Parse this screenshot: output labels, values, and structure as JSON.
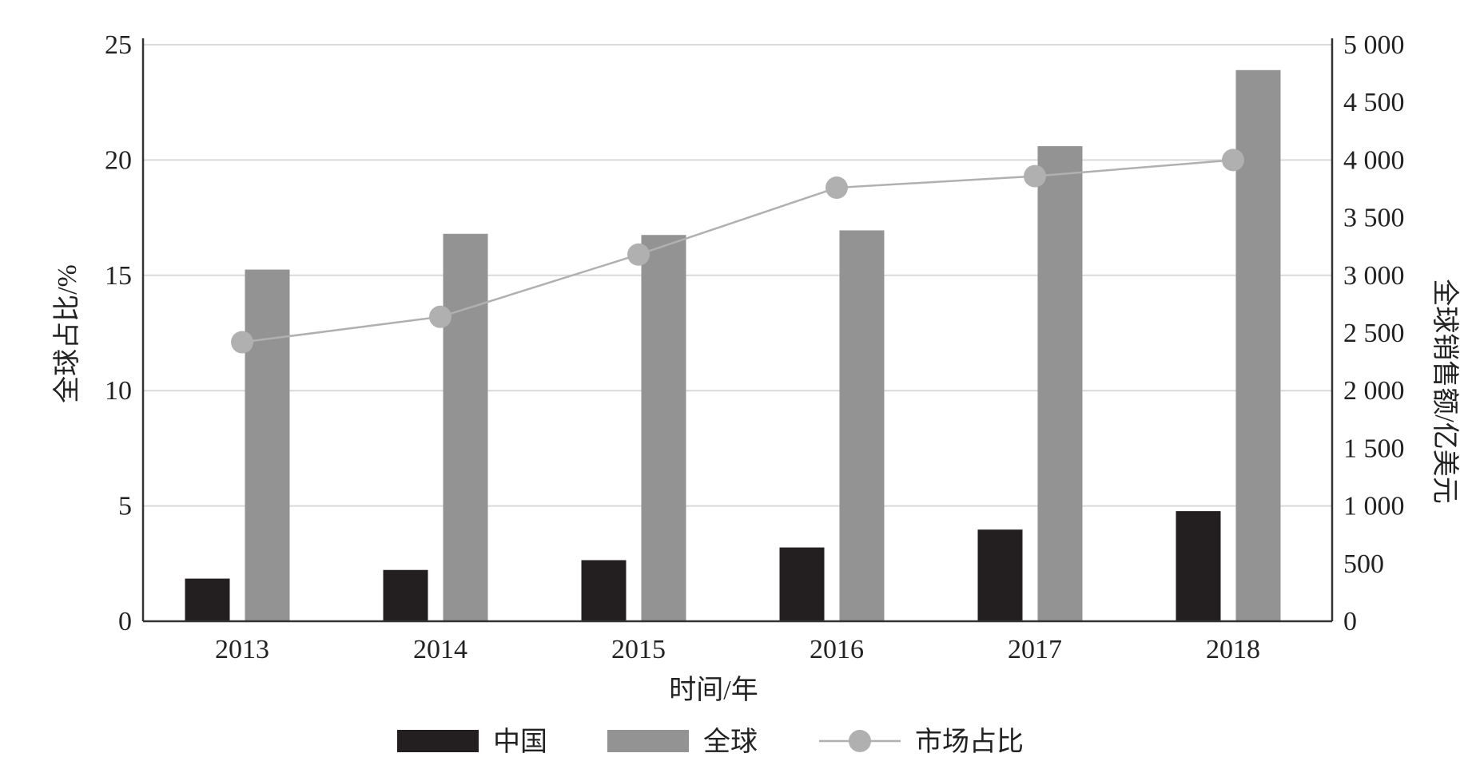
{
  "chart_data": {
    "type": "bar",
    "categories": [
      "2013",
      "2014",
      "2015",
      "2016",
      "2017",
      "2018"
    ],
    "xlabel": "时间/年",
    "ylabel_left": "全球占比/%",
    "ylabel_right": "全球销售额/亿美元",
    "ylim_left": [
      0,
      25
    ],
    "ylim_right": [
      0,
      5000
    ],
    "yticks_left": [
      "0",
      "5",
      "10",
      "15",
      "20",
      "25"
    ],
    "yticks_right": [
      "0",
      "500",
      "1 000",
      "1 500",
      "2 000",
      "2 500",
      "3 000",
      "3 500",
      "4 000",
      "4 500",
      "5 000"
    ],
    "grid": true,
    "legend_position": "bottom",
    "series": [
      {
        "name": "中国",
        "axis": "right",
        "kind": "bar",
        "color": "#231f20",
        "values": [
          370,
          445,
          530,
          640,
          795,
          955
        ]
      },
      {
        "name": "全球",
        "axis": "right",
        "kind": "bar",
        "color": "#939393",
        "values": [
          3050,
          3360,
          3350,
          3390,
          4120,
          4780
        ]
      },
      {
        "name": "市场占比",
        "axis": "left",
        "kind": "line",
        "color": "#b0b0b0",
        "values": [
          12.1,
          13.2,
          15.9,
          18.8,
          19.3,
          20.0
        ]
      }
    ]
  }
}
